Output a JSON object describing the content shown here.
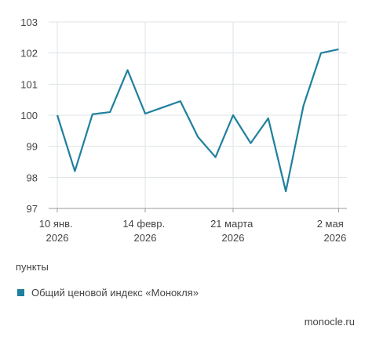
{
  "chart_data": {
    "type": "line",
    "categories": [
      "10 янв. 2026",
      null,
      null,
      null,
      null,
      "14 февр. 2026",
      null,
      null,
      null,
      null,
      "21 марта 2026",
      null,
      null,
      null,
      null,
      null,
      "2 мая 2026"
    ],
    "series": [
      {
        "name": "Общий ценовой индекс «Монокля»",
        "color": "#1f7f9e",
        "values": [
          100.0,
          98.2,
          100.03,
          100.1,
          101.45,
          100.05,
          100.25,
          100.45,
          99.3,
          98.65,
          100.0,
          99.1,
          99.9,
          97.55,
          100.3,
          102.0,
          102.12
        ]
      }
    ],
    "ylim": [
      97,
      103
    ],
    "yticks": [
      97,
      98,
      99,
      100,
      101,
      102,
      103
    ],
    "grid": true,
    "y_unit": "пункты",
    "source": "monocle.ru"
  }
}
